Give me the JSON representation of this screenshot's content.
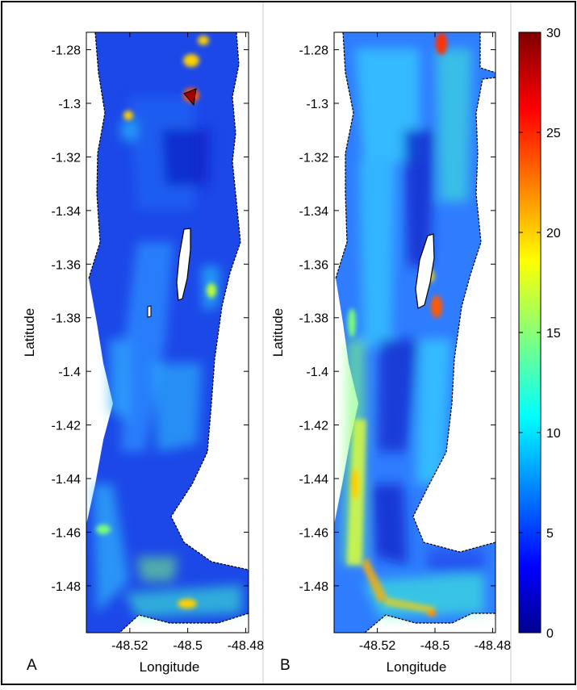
{
  "figure": {
    "panel_a_letter": "A",
    "panel_b_letter": "B"
  },
  "chart_data": [
    {
      "type": "heatmap",
      "panel": "A",
      "xlabel": "Longitude",
      "ylabel": "Latitude",
      "xlim": [
        -48.535,
        -48.479
      ],
      "ylim": [
        -1.4975,
        -1.2735
      ],
      "x_ticks": [
        -48.52,
        -48.5,
        -48.48
      ],
      "x_tick_labels": [
        "-48.52",
        "-48.5",
        "-48.48"
      ],
      "y_ticks": [
        -1.28,
        -1.3,
        -1.32,
        -1.34,
        -1.36,
        -1.38,
        -1.4,
        -1.42,
        -1.44,
        -1.46,
        -1.48
      ],
      "y_tick_labels": [
        "-1.28",
        "-1.3",
        "-1.32",
        "-1.34",
        "-1.36",
        "-1.38",
        "-1.4",
        "-1.42",
        "-1.44",
        "-1.46",
        "-1.48"
      ],
      "grid": false
    },
    {
      "type": "heatmap",
      "panel": "B",
      "xlabel": "Longitude",
      "ylabel": "Latitude",
      "xlim": [
        -48.535,
        -48.479
      ],
      "ylim": [
        -1.4975,
        -1.2735
      ],
      "x_ticks": [
        -48.52,
        -48.5,
        -48.48
      ],
      "x_tick_labels": [
        "-48.52",
        "-48.5",
        "-48.48"
      ],
      "y_ticks": [
        -1.28,
        -1.3,
        -1.32,
        -1.34,
        -1.36,
        -1.38,
        -1.4,
        -1.42,
        -1.44,
        -1.46,
        -1.48
      ],
      "y_tick_labels": [
        "-1.28",
        "-1.3",
        "-1.32",
        "-1.34",
        "-1.36",
        "-1.38",
        "-1.4",
        "-1.42",
        "-1.44",
        "-1.46",
        "-1.48"
      ],
      "grid": false
    }
  ],
  "colorbar": {
    "min": 0,
    "max": 30,
    "ticks": [
      0,
      5,
      10,
      15,
      20,
      25,
      30
    ],
    "tick_labels": [
      "0",
      "5",
      "10",
      "15",
      "20",
      "25",
      "30"
    ],
    "colormap": "jet"
  },
  "colors": {
    "frame": "#000000",
    "separator": "#c8c8c8",
    "land": "#ffffff",
    "jet_low": "#00008f",
    "jet_high": "#800000"
  }
}
